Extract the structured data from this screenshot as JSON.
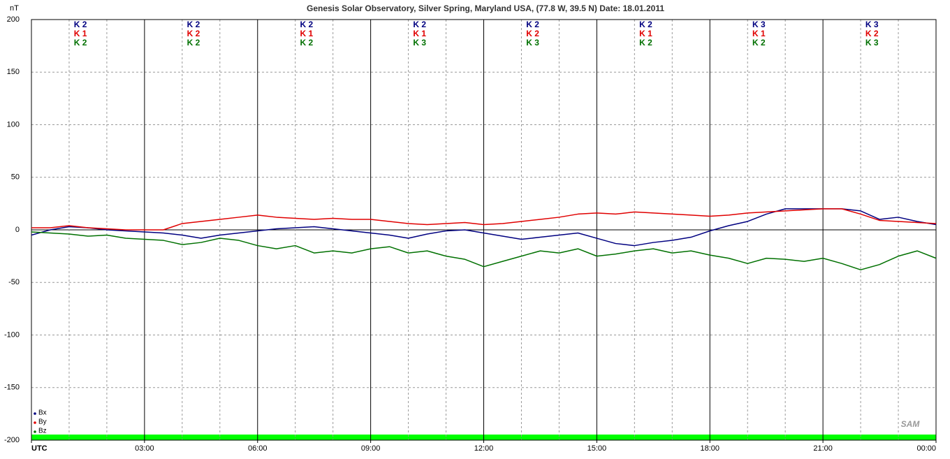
{
  "chart_data": {
    "type": "line",
    "title": "Genesis Solar Observatory, Silver Spring, Maryland USA, (77.8 W, 39.5 N)  Date: 18.01.2011",
    "y_label": "nT",
    "logo": "SAM",
    "x": [
      0,
      0.5,
      1,
      1.5,
      2,
      2.5,
      3,
      3.5,
      4,
      4.5,
      5,
      5.5,
      6,
      6.5,
      7,
      7.5,
      8,
      8.5,
      9,
      9.5,
      10,
      10.5,
      11,
      11.5,
      12,
      12.5,
      13,
      13.5,
      14,
      14.5,
      15,
      15.5,
      16,
      16.5,
      17,
      17.5,
      18,
      18.5,
      19,
      19.5,
      20,
      20.5,
      21,
      21.5,
      22,
      22.5,
      23,
      23.5,
      24
    ],
    "series": [
      {
        "name": "Bx",
        "color": "#000080",
        "values": [
          -5,
          0,
          3,
          2,
          0,
          -1,
          -2,
          -3,
          -5,
          -8,
          -5,
          -3,
          -1,
          1,
          2,
          3,
          1,
          -1,
          -3,
          -5,
          -8,
          -4,
          -1,
          0,
          -3,
          -6,
          -9,
          -7,
          -5,
          -3,
          -8,
          -13,
          -15,
          -12,
          -10,
          -7,
          -1,
          4,
          8,
          15,
          20,
          20,
          20,
          20,
          18,
          10,
          12,
          8,
          5
        ],
        "k_labels": [
          "K 2",
          "K 2",
          "K 2",
          "K 2",
          "K 2",
          "K 2",
          "K 3",
          "K 3"
        ]
      },
      {
        "name": "By",
        "color": "#e00000",
        "values": [
          2,
          2,
          4,
          2,
          1,
          0,
          0,
          0,
          6,
          8,
          10,
          12,
          14,
          12,
          11,
          10,
          11,
          10,
          10,
          8,
          6,
          5,
          6,
          7,
          5,
          6,
          8,
          10,
          12,
          15,
          16,
          15,
          17,
          16,
          15,
          14,
          13,
          14,
          16,
          17,
          18,
          19,
          20,
          20,
          15,
          9,
          8,
          7,
          6
        ],
        "k_labels": [
          "K 1",
          "K 2",
          "K 1",
          "K 1",
          "K 2",
          "K 1",
          "K 1",
          "K 2"
        ]
      },
      {
        "name": "Bz",
        "color": "#007000",
        "values": [
          -2,
          -3,
          -4,
          -6,
          -5,
          -8,
          -9,
          -10,
          -14,
          -12,
          -8,
          -10,
          -15,
          -18,
          -15,
          -22,
          -20,
          -22,
          -18,
          -16,
          -22,
          -20,
          -25,
          -28,
          -35,
          -30,
          -25,
          -20,
          -22,
          -18,
          -25,
          -23,
          -20,
          -18,
          -22,
          -20,
          -24,
          -27,
          -32,
          -27,
          -28,
          -30,
          -27,
          -32,
          -38,
          -33,
          -25,
          -20,
          -27
        ],
        "k_labels": [
          "K 2",
          "K 2",
          "K 2",
          "K 3",
          "K 3",
          "K 2",
          "K 2",
          "K 3"
        ]
      }
    ],
    "xlim": [
      0,
      24
    ],
    "xticks": [
      {
        "value": 0,
        "label": "UTC"
      },
      {
        "value": 3,
        "label": "03:00"
      },
      {
        "value": 6,
        "label": "06:00"
      },
      {
        "value": 9,
        "label": "09:00"
      },
      {
        "value": 12,
        "label": "12:00"
      },
      {
        "value": 15,
        "label": "15:00"
      },
      {
        "value": 18,
        "label": "18:00"
      },
      {
        "value": 21,
        "label": "21:00"
      },
      {
        "value": 24,
        "label": "00:00"
      }
    ],
    "x_minor_ticks": [
      1,
      2,
      4,
      5,
      7,
      8,
      10,
      11,
      13,
      14,
      16,
      17,
      19,
      20,
      22,
      23
    ],
    "ylim": [
      -200,
      200
    ],
    "yticks": [
      -200,
      -150,
      -100,
      -50,
      0,
      50,
      100,
      150,
      200
    ],
    "grid": true,
    "legend": "lower left"
  }
}
